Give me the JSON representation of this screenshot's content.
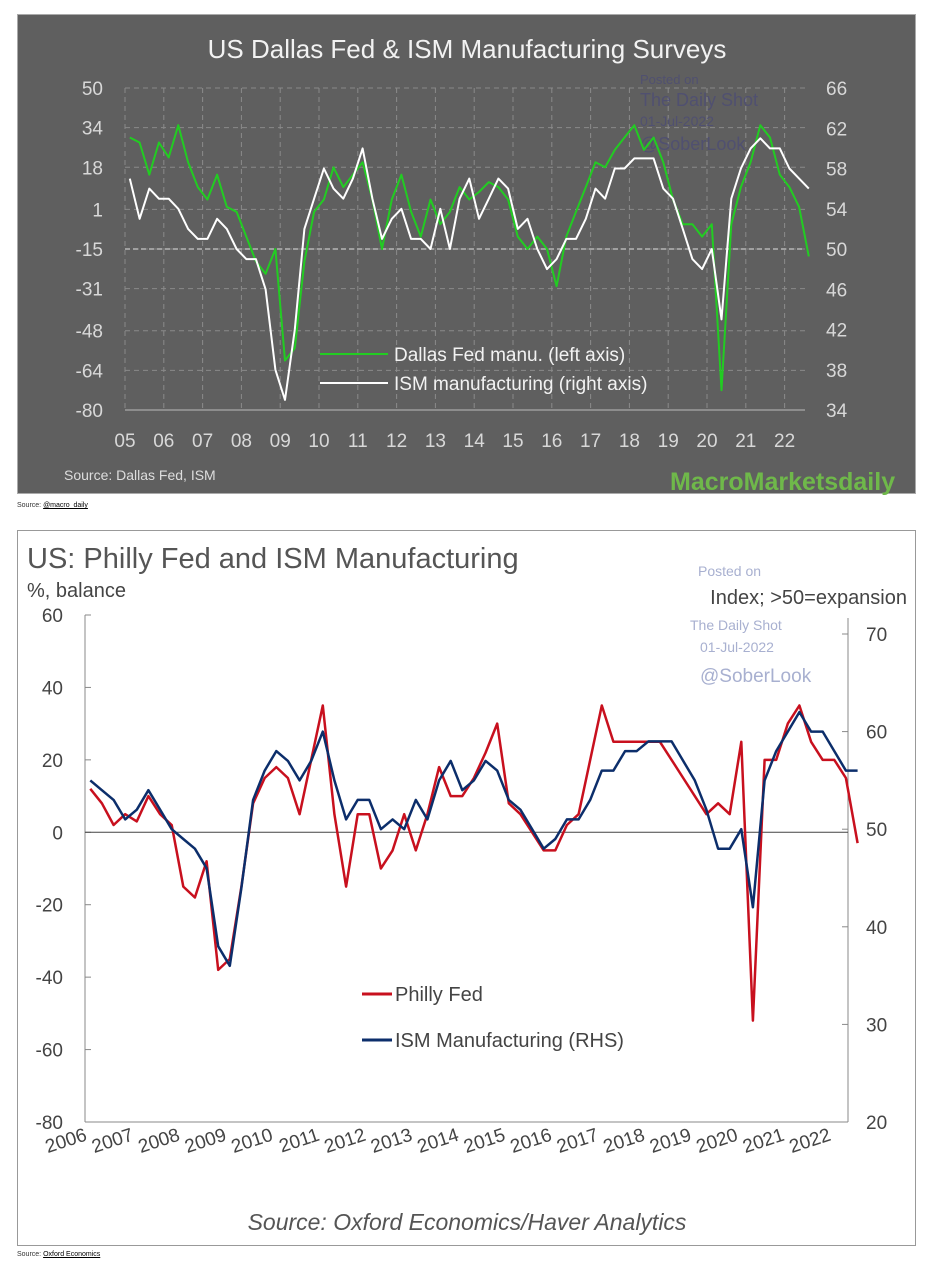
{
  "chart_data": [
    {
      "type": "line",
      "title": "US Dallas Fed & ISM Manufacturing Surveys",
      "x_ticks": [
        "05",
        "06",
        "07",
        "08",
        "09",
        "10",
        "11",
        "12",
        "13",
        "14",
        "15",
        "16",
        "17",
        "18",
        "19",
        "20",
        "21",
        "22"
      ],
      "y_left_ticks": [
        50,
        34,
        18,
        1,
        -15,
        -31,
        -48,
        -64,
        -80
      ],
      "y_left_range": [
        -80,
        50
      ],
      "y_right_ticks": [
        66,
        62,
        58,
        54,
        50,
        46,
        42,
        38,
        34
      ],
      "y_right_range": [
        34,
        66
      ],
      "x_start": 2005,
      "grid": true,
      "legend_position": "bottom-center",
      "series": [
        {
          "name": "Dallas Fed manu. (left axis)",
          "axis": "left",
          "color": "#22cc22",
          "freq": "quarterly",
          "values": [
            30,
            28,
            15,
            28,
            22,
            35,
            20,
            10,
            5,
            15,
            2,
            0,
            -10,
            -20,
            -25,
            -15,
            -60,
            -55,
            -20,
            0,
            5,
            18,
            10,
            15,
            20,
            5,
            -15,
            5,
            15,
            0,
            -10,
            5,
            -5,
            0,
            10,
            5,
            8,
            12,
            10,
            5,
            -10,
            -15,
            -10,
            -15,
            -30,
            -10,
            0,
            10,
            20,
            18,
            25,
            30,
            35,
            25,
            30,
            20,
            5,
            -5,
            -5,
            -10,
            -5,
            -72,
            -5,
            10,
            20,
            35,
            30,
            15,
            10,
            2,
            -18
          ]
        },
        {
          "name": "ISM manufacturing (right axis)",
          "axis": "right",
          "color": "#ffffff",
          "freq": "quarterly",
          "values": [
            57,
            53,
            56,
            55,
            55,
            54,
            52,
            51,
            51,
            53,
            52,
            50,
            49,
            49,
            46,
            38,
            35,
            42,
            52,
            55,
            58,
            56,
            55,
            57,
            60,
            55,
            51,
            53,
            54,
            51,
            51,
            50,
            54,
            50,
            55,
            57,
            53,
            55,
            57,
            56,
            52,
            53,
            50,
            48,
            49,
            51,
            51,
            53,
            56,
            55,
            58,
            58,
            59,
            59,
            59,
            56,
            55,
            52,
            49,
            48,
            50,
            43,
            55,
            58,
            60,
            61,
            60,
            60,
            58,
            57,
            56
          ]
        }
      ],
      "reference_line": {
        "left": -15,
        "right": 50
      },
      "source": "Source:  Dallas Fed,  ISM",
      "logo": "MacroMarketsdaily",
      "watermark": [
        "Posted on",
        "The Daily Shot",
        "01-Jul-2022",
        "@SoberLook"
      ]
    },
    {
      "type": "line",
      "title": "US: Philly Fed and ISM Manufacturing",
      "ylabel_left": "%, balance",
      "ylabel_right": "Index; >50=expansion",
      "x_ticks": [
        "2006",
        "2007",
        "2008",
        "2009",
        "2010",
        "2011",
        "2012",
        "2013",
        "2014",
        "2015",
        "2016",
        "2017",
        "2018",
        "2019",
        "2020",
        "2021",
        "2022"
      ],
      "y_left_ticks": [
        60,
        40,
        20,
        0,
        -20,
        -40,
        -60,
        -80
      ],
      "y_left_range": [
        -80,
        60
      ],
      "y_right_ticks": [
        70,
        60,
        50,
        40,
        30,
        20
      ],
      "y_right_range": [
        20,
        70
      ],
      "x_start": 2006,
      "grid": false,
      "legend_position": "bottom-center",
      "series": [
        {
          "name": "Philly Fed",
          "axis": "left",
          "color": "#c8101e",
          "freq": "quarterly",
          "values": [
            12,
            8,
            2,
            5,
            3,
            10,
            5,
            2,
            -15,
            -18,
            -8,
            -38,
            -35,
            -15,
            8,
            15,
            18,
            15,
            5,
            20,
            35,
            5,
            -15,
            5,
            5,
            -10,
            -5,
            5,
            -5,
            5,
            18,
            10,
            10,
            15,
            22,
            30,
            8,
            5,
            0,
            -5,
            -5,
            2,
            5,
            20,
            35,
            25,
            25,
            25,
            25,
            25,
            20,
            15,
            10,
            5,
            8,
            5,
            25,
            -52,
            20,
            20,
            30,
            35,
            25,
            20,
            20,
            15,
            -3
          ]
        },
        {
          "name": "ISM Manufacturing (RHS)",
          "axis": "right",
          "color": "#0c2e6b",
          "freq": "quarterly",
          "values": [
            55,
            54,
            53,
            51,
            52,
            54,
            52,
            50,
            49,
            48,
            46,
            38,
            36,
            44,
            53,
            56,
            58,
            57,
            55,
            57,
            60,
            55,
            51,
            53,
            53,
            50,
            51,
            50,
            53,
            51,
            55,
            57,
            54,
            55,
            57,
            56,
            53,
            52,
            50,
            48,
            49,
            51,
            51,
            53,
            56,
            56,
            58,
            58,
            59,
            59,
            59,
            57,
            55,
            52,
            48,
            48,
            50,
            42,
            55,
            58,
            60,
            62,
            60,
            60,
            58,
            56,
            56
          ]
        }
      ],
      "reference_line": {
        "left": 0
      },
      "source": "Source: Oxford Economics/Haver Analytics",
      "watermark": [
        "Posted on",
        "The Daily Shot",
        "01-Jul-2022",
        "@SoberLook"
      ]
    }
  ],
  "captions": {
    "top_prefix": "Source: ",
    "top_link": "@macro_daily",
    "bottom_prefix": "Source: ",
    "bottom_link": "Oxford Economics"
  }
}
